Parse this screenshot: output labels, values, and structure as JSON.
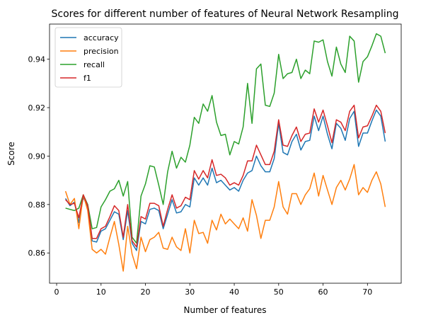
{
  "chart_data": {
    "type": "line",
    "title": "Scores for different number of features of Neural Network Resampling",
    "xlabel": "Number of features",
    "ylabel": "Score",
    "xlim": [
      -1.6,
      77.6
    ],
    "ylim": [
      0.8475,
      0.9545
    ],
    "xticks": [
      0,
      10,
      20,
      30,
      40,
      50,
      60,
      70
    ],
    "yticks": [
      0.86,
      0.88,
      0.9,
      0.92,
      0.94
    ],
    "ytick_labels": [
      "0.86",
      "0.88",
      "0.90",
      "0.92",
      "0.94"
    ],
    "grid": false,
    "legend_position": "top-left",
    "x": [
      2,
      3,
      4,
      5,
      6,
      7,
      8,
      9,
      10,
      11,
      12,
      13,
      14,
      15,
      16,
      17,
      18,
      19,
      20,
      21,
      22,
      23,
      24,
      25,
      26,
      27,
      28,
      29,
      30,
      31,
      32,
      33,
      34,
      35,
      36,
      37,
      38,
      39,
      40,
      41,
      42,
      43,
      44,
      45,
      46,
      47,
      48,
      49,
      50,
      51,
      52,
      53,
      54,
      55,
      56,
      57,
      58,
      59,
      60,
      61,
      62,
      63,
      64,
      65,
      66,
      67,
      68,
      69,
      70,
      71,
      72,
      73,
      74
    ],
    "series": [
      {
        "name": "accuracy",
        "color": "#1f77b4",
        "values": [
          0.8825,
          0.8795,
          0.881,
          0.8725,
          0.883,
          0.879,
          0.865,
          0.8645,
          0.869,
          0.87,
          0.8735,
          0.877,
          0.876,
          0.8655,
          0.8775,
          0.864,
          0.861,
          0.873,
          0.872,
          0.878,
          0.8785,
          0.8775,
          0.87,
          0.876,
          0.882,
          0.8765,
          0.877,
          0.88,
          0.879,
          0.891,
          0.888,
          0.891,
          0.888,
          0.895,
          0.889,
          0.89,
          0.888,
          0.886,
          0.887,
          0.8855,
          0.89,
          0.893,
          0.894,
          0.9,
          0.896,
          0.8935,
          0.8935,
          0.899,
          0.9135,
          0.9015,
          0.9005,
          0.906,
          0.909,
          0.9025,
          0.906,
          0.9065,
          0.9165,
          0.9105,
          0.9165,
          0.909,
          0.903,
          0.9135,
          0.9115,
          0.9065,
          0.9155,
          0.9185,
          0.904,
          0.9095,
          0.9095,
          0.9145,
          0.919,
          0.9165,
          0.906
        ]
      },
      {
        "name": "precision",
        "color": "#ff7f0e",
        "values": [
          0.8855,
          0.88,
          0.8825,
          0.87,
          0.884,
          0.8775,
          0.8615,
          0.86,
          0.8615,
          0.8595,
          0.8665,
          0.873,
          0.8635,
          0.8525,
          0.871,
          0.8595,
          0.8535,
          0.8665,
          0.8605,
          0.8655,
          0.8665,
          0.8685,
          0.862,
          0.8615,
          0.8665,
          0.8625,
          0.861,
          0.87,
          0.86,
          0.8735,
          0.868,
          0.8685,
          0.864,
          0.8735,
          0.8695,
          0.876,
          0.872,
          0.874,
          0.872,
          0.87,
          0.8745,
          0.869,
          0.882,
          0.8755,
          0.866,
          0.8735,
          0.8735,
          0.879,
          0.8895,
          0.879,
          0.876,
          0.8845,
          0.8845,
          0.88,
          0.884,
          0.8865,
          0.893,
          0.8835,
          0.892,
          0.886,
          0.88,
          0.887,
          0.89,
          0.886,
          0.8905,
          0.8965,
          0.884,
          0.887,
          0.885,
          0.89,
          0.8935,
          0.8885,
          0.879
        ]
      },
      {
        "name": "recall",
        "color": "#2ca02c",
        "values": [
          0.8785,
          0.878,
          0.8775,
          0.8785,
          0.884,
          0.88,
          0.87,
          0.8705,
          0.879,
          0.882,
          0.8855,
          0.8865,
          0.89,
          0.8835,
          0.8895,
          0.8665,
          0.864,
          0.8835,
          0.8885,
          0.896,
          0.8955,
          0.888,
          0.88,
          0.8935,
          0.902,
          0.895,
          0.8995,
          0.8975,
          0.9045,
          0.916,
          0.9135,
          0.9215,
          0.9185,
          0.925,
          0.914,
          0.9085,
          0.909,
          0.9005,
          0.906,
          0.905,
          0.912,
          0.93,
          0.9135,
          0.936,
          0.938,
          0.921,
          0.9205,
          0.926,
          0.942,
          0.932,
          0.934,
          0.9345,
          0.94,
          0.932,
          0.9355,
          0.934,
          0.9475,
          0.947,
          0.948,
          0.939,
          0.933,
          0.945,
          0.938,
          0.9345,
          0.9495,
          0.9475,
          0.9305,
          0.939,
          0.941,
          0.9455,
          0.9505,
          0.9495,
          0.9425
        ]
      },
      {
        "name": "f1",
        "color": "#d62728",
        "values": [
          0.882,
          0.88,
          0.8805,
          0.8745,
          0.884,
          0.8795,
          0.866,
          0.866,
          0.87,
          0.871,
          0.875,
          0.8795,
          0.8775,
          0.8665,
          0.88,
          0.865,
          0.8625,
          0.875,
          0.874,
          0.8805,
          0.8805,
          0.8795,
          0.871,
          0.878,
          0.884,
          0.8785,
          0.8795,
          0.883,
          0.882,
          0.894,
          0.8905,
          0.894,
          0.891,
          0.8985,
          0.892,
          0.8925,
          0.891,
          0.888,
          0.889,
          0.888,
          0.892,
          0.898,
          0.898,
          0.9045,
          0.9005,
          0.8965,
          0.8965,
          0.902,
          0.915,
          0.9045,
          0.904,
          0.9085,
          0.912,
          0.906,
          0.909,
          0.9095,
          0.9195,
          0.914,
          0.919,
          0.9125,
          0.9055,
          0.915,
          0.914,
          0.9105,
          0.9185,
          0.921,
          0.9075,
          0.912,
          0.9125,
          0.9165,
          0.921,
          0.9185,
          0.9095
        ]
      }
    ]
  }
}
